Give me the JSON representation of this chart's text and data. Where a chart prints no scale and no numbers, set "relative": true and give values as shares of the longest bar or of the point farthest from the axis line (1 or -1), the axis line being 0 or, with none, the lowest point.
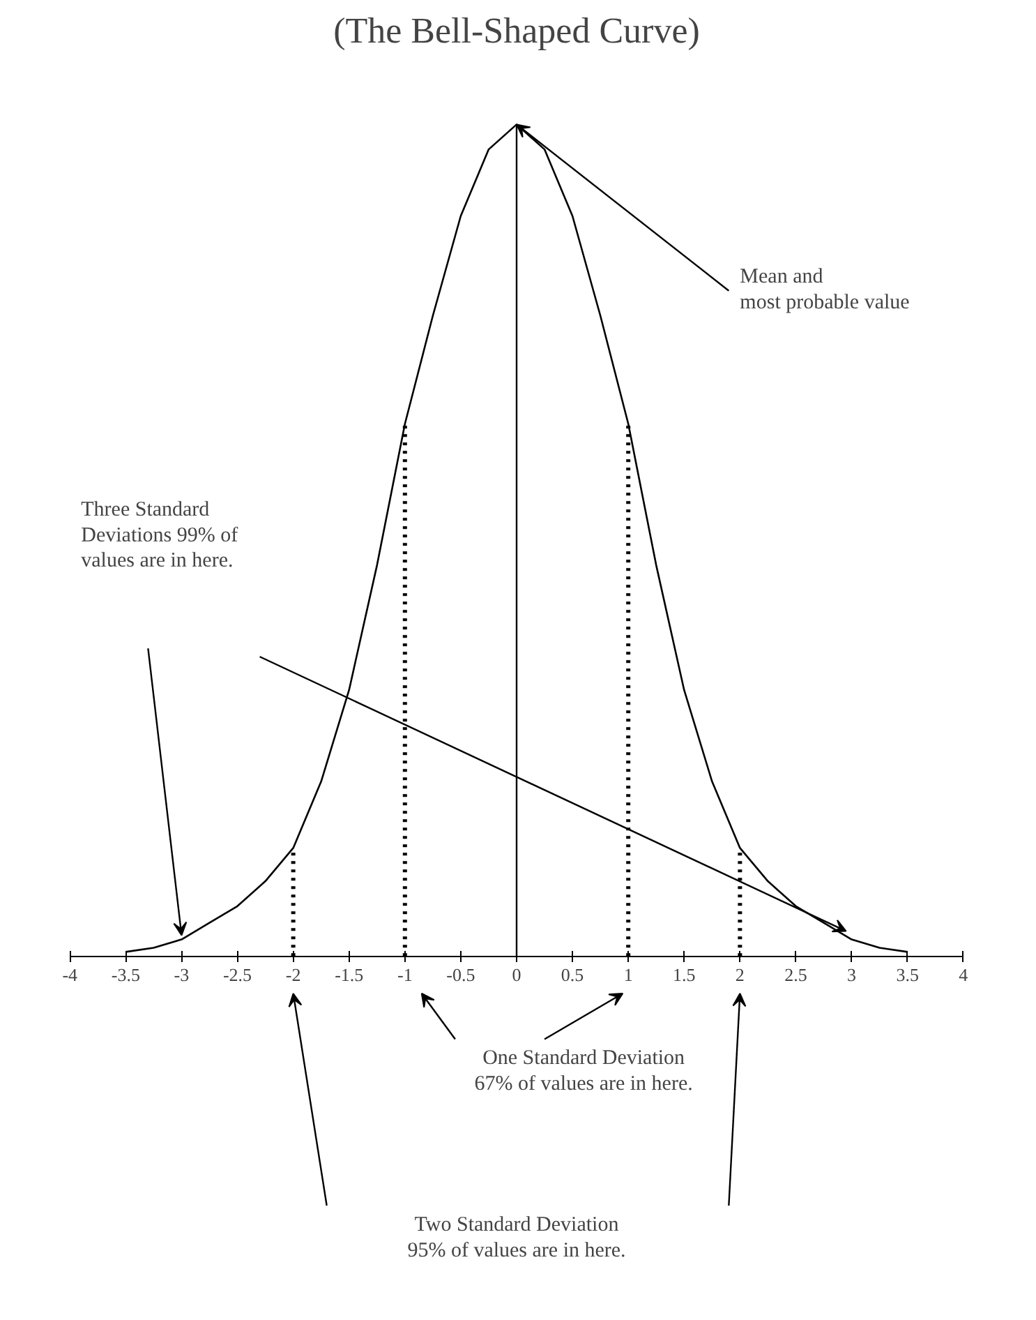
{
  "chart_data": {
    "type": "line",
    "title": "(The Bell-Shaped Curve)",
    "relative": true,
    "xlim": [
      -4,
      4
    ],
    "xticks": [
      -4,
      -3.5,
      -3,
      -2.5,
      -2,
      -1.5,
      -1,
      -0.5,
      0,
      0.5,
      1,
      1.5,
      2,
      2.5,
      3,
      3.5,
      4
    ],
    "series": [
      {
        "color": "#000000",
        "x": [
          -3.5,
          -3.25,
          -3,
          -2.75,
          -2.5,
          -2.25,
          -2,
          -1.75,
          -1.5,
          -1.25,
          -1,
          -0.75,
          -0.5,
          -0.25,
          0,
          0.25,
          0.5,
          0.75,
          1,
          1.25,
          1.5,
          1.75,
          2,
          2.25,
          2.5,
          2.75,
          3,
          3.25,
          3.5
        ],
        "values": [
          0.005,
          0.01,
          0.02,
          0.04,
          0.06,
          0.09,
          0.13,
          0.21,
          0.32,
          0.47,
          0.64,
          0.77,
          0.89,
          0.97,
          1,
          0.97,
          0.89,
          0.77,
          0.64,
          0.47,
          0.32,
          0.21,
          0.13,
          0.09,
          0.06,
          0.04,
          0.02,
          0.01,
          0.005
        ]
      },
      {
        "color": "#000000",
        "line_style": "dotted",
        "x": [
          -2,
          -2
        ],
        "values": [
          0,
          0.13
        ]
      },
      {
        "color": "#000000",
        "line_style": "dotted",
        "x": [
          -1,
          -1
        ],
        "values": [
          0,
          0.64
        ]
      },
      {
        "color": "#000000",
        "line_style": "dotted",
        "x": [
          1,
          1
        ],
        "values": [
          0,
          0.64
        ]
      },
      {
        "color": "#000000",
        "line_style": "dotted",
        "x": [
          2,
          2
        ],
        "values": [
          0,
          0.13
        ]
      }
    ],
    "ref_lines": [
      {
        "axis": "x",
        "value": 0,
        "color": "#000000"
      }
    ],
    "annotations": [
      "Mean and\nmost probable value",
      "Three Standard\nDeviations 99% of\nvalues are in here.",
      "One Standard Deviation\n67% of values are in here.",
      "Two Standard Deviation\n95% of values are in here."
    ]
  }
}
